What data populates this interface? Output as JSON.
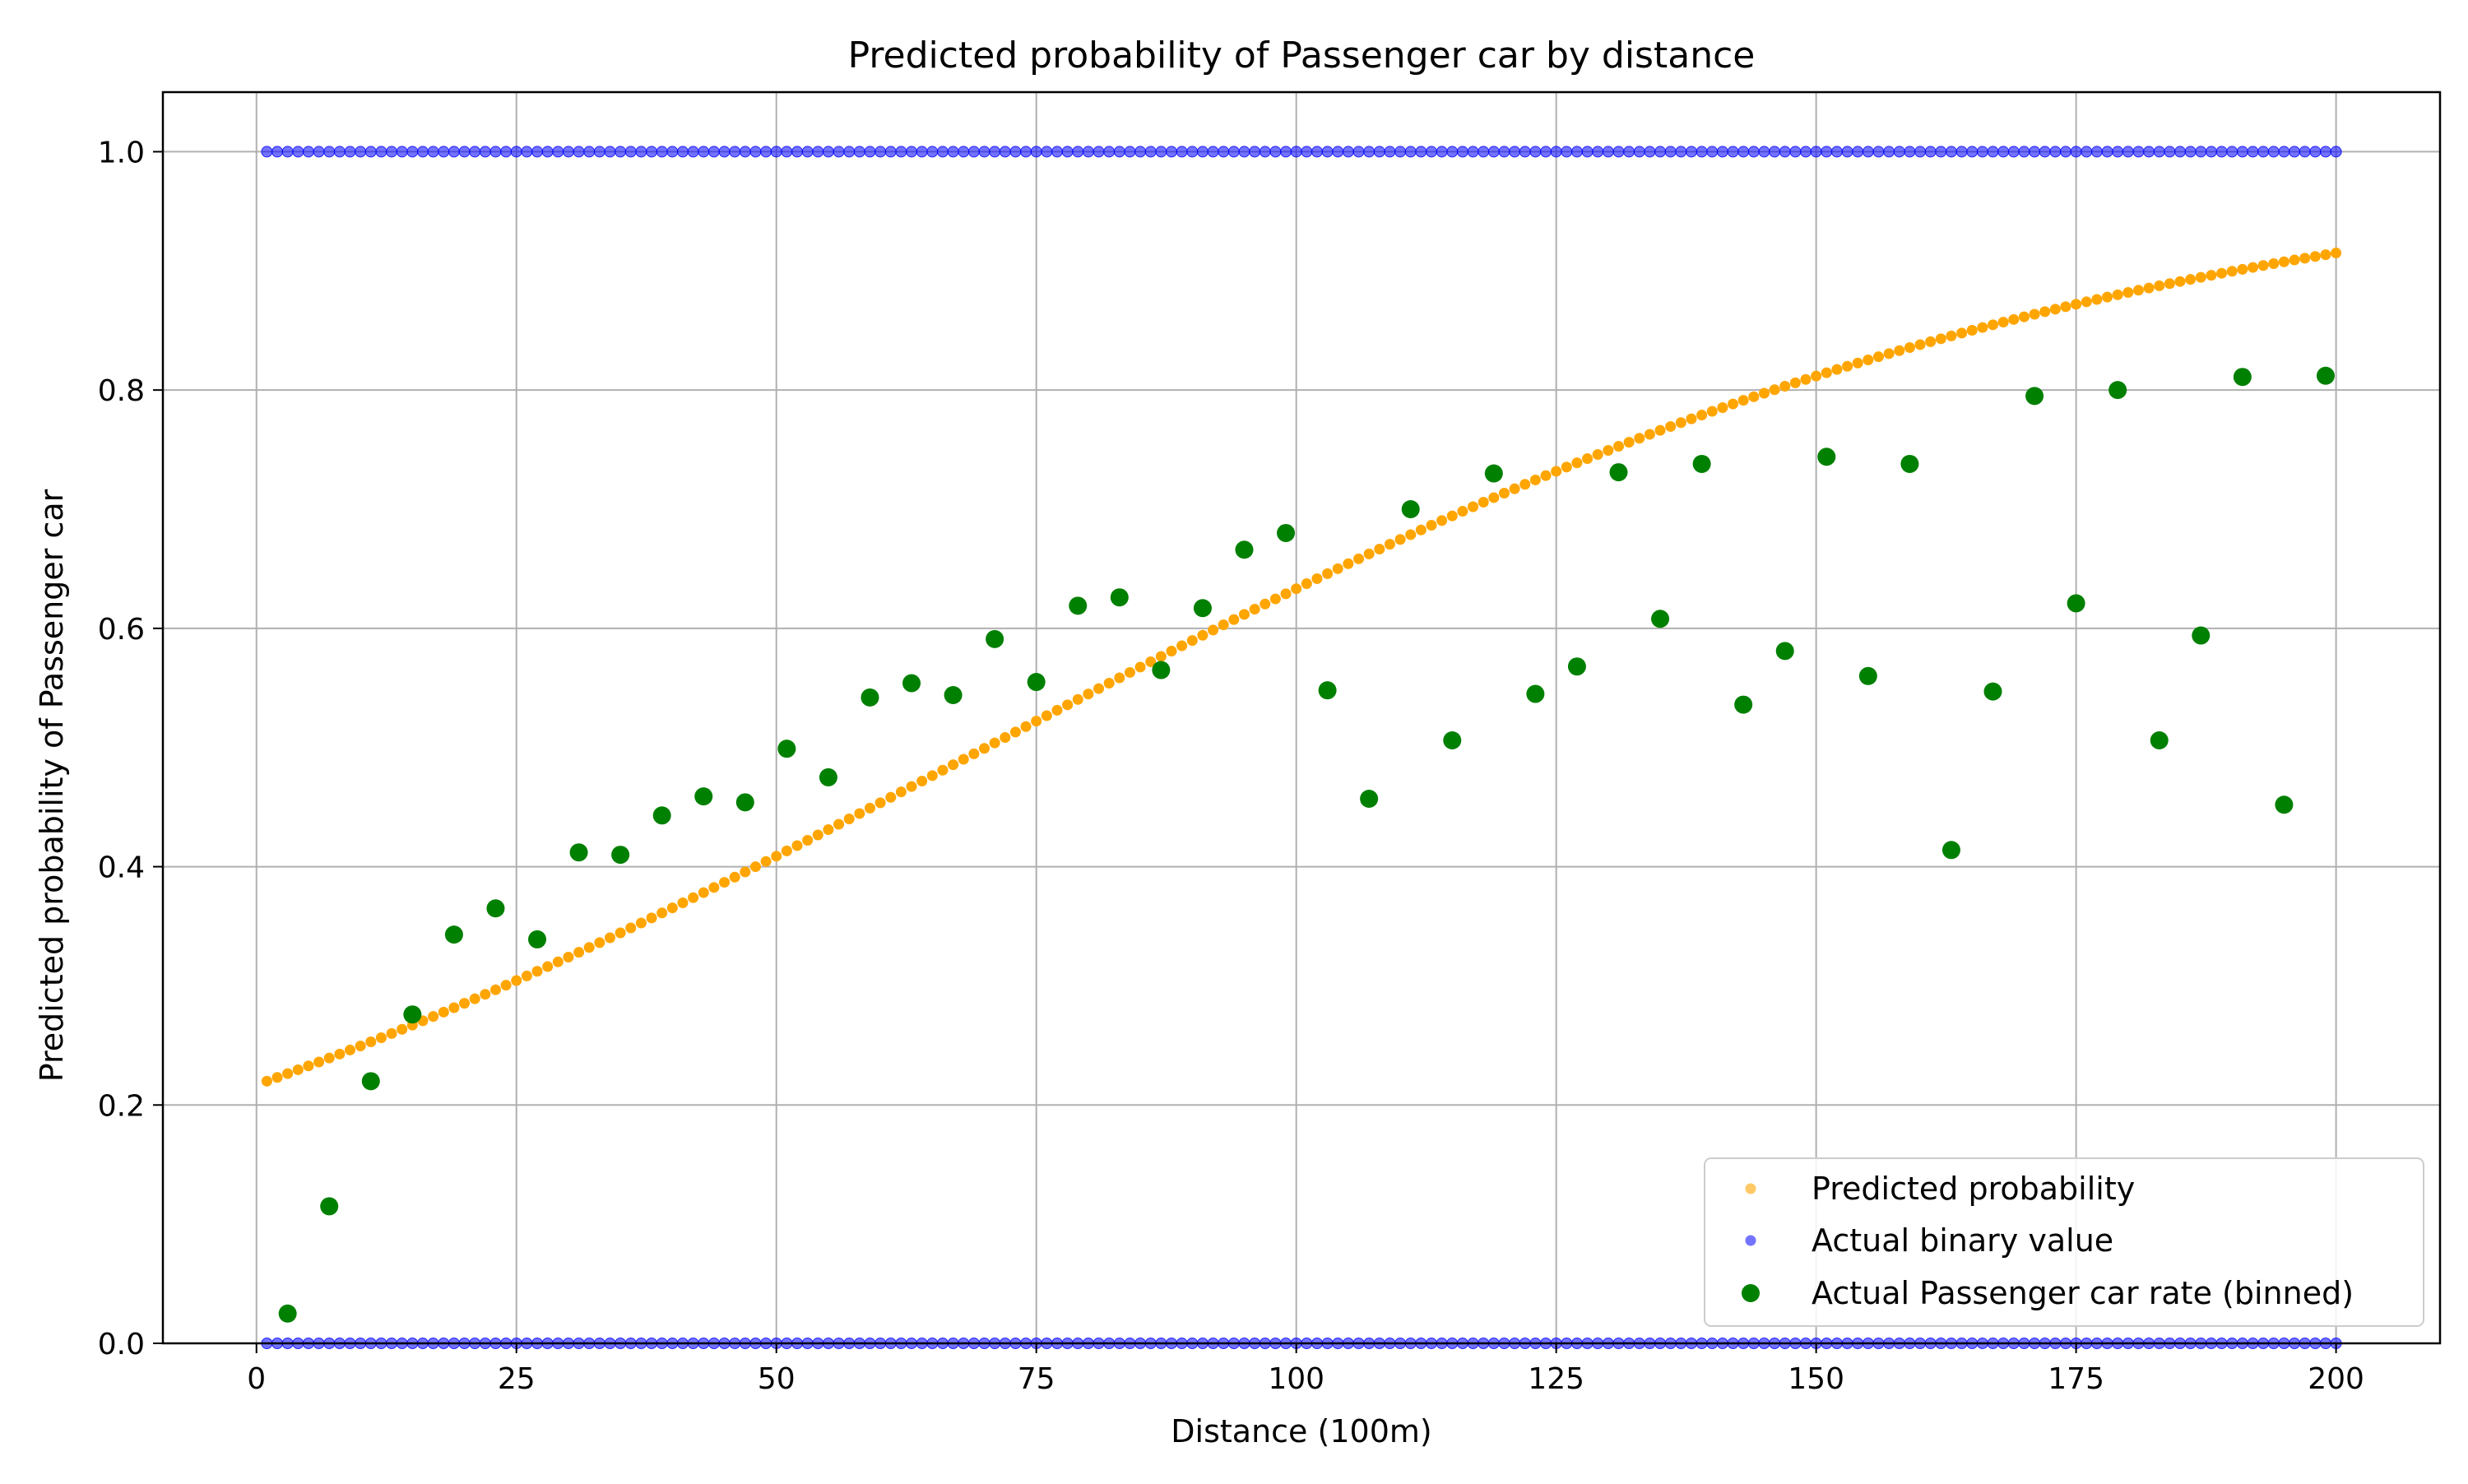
{
  "chart_data": {
    "type": "scatter",
    "title": "Predicted probability of Passenger car by distance",
    "xlabel": "Distance (100m)",
    "ylabel": "Predicted probability of Passenger car",
    "xlim": [
      -9,
      210
    ],
    "ylim": [
      0,
      1.05
    ],
    "xticks": [
      0,
      25,
      50,
      75,
      100,
      125,
      150,
      175,
      200
    ],
    "yticks": [
      0.0,
      0.2,
      0.4,
      0.6,
      0.8,
      1.0
    ],
    "xtick_labels": [
      "0",
      "25",
      "50",
      "75",
      "100",
      "125",
      "150",
      "175",
      "200"
    ],
    "ytick_labels": [
      "0.0",
      "0.2",
      "0.4",
      "0.6",
      "0.8",
      "1.0"
    ],
    "grid": true,
    "legend_position": "lower-right",
    "series": [
      {
        "name": "Predicted probability",
        "color": "#ffa500",
        "kind": "logistic_curve",
        "x_range": [
          1,
          200
        ],
        "step": 1,
        "y_start": 0.22,
        "y_end": 0.915
      },
      {
        "name": "Actual binary value",
        "color": "#0000ff",
        "kind": "binary_band",
        "x_range": [
          1,
          200
        ],
        "step": 1,
        "levels": [
          0,
          1
        ]
      },
      {
        "name": "Actual Passenger car rate (binned)",
        "color": "#008000",
        "kind": "points",
        "x": [
          3,
          7,
          11,
          15,
          19,
          23,
          27,
          31,
          35,
          39,
          43,
          47,
          51,
          55,
          59,
          63,
          67,
          71,
          75,
          79,
          83,
          87,
          91,
          95,
          99,
          103,
          107,
          111,
          115,
          119,
          123,
          127,
          131,
          135,
          139,
          143,
          147,
          151,
          155,
          159,
          163,
          167,
          171,
          175,
          179,
          183,
          187,
          191,
          195,
          199
        ],
        "y": [
          0.025,
          0.115,
          0.22,
          0.276,
          0.343,
          0.365,
          0.339,
          0.412,
          0.41,
          0.443,
          0.459,
          0.454,
          0.499,
          0.475,
          0.542,
          0.554,
          0.544,
          0.591,
          0.555,
          0.619,
          0.626,
          0.565,
          0.617,
          0.666,
          0.68,
          0.548,
          0.457,
          0.7,
          0.506,
          0.73,
          0.545,
          0.568,
          0.731,
          0.608,
          0.738,
          0.536,
          0.581,
          0.744,
          0.56,
          0.738,
          0.414,
          0.547,
          0.795,
          0.621,
          0.8,
          0.506,
          0.594,
          0.811,
          0.452,
          0.812
        ]
      }
    ]
  }
}
